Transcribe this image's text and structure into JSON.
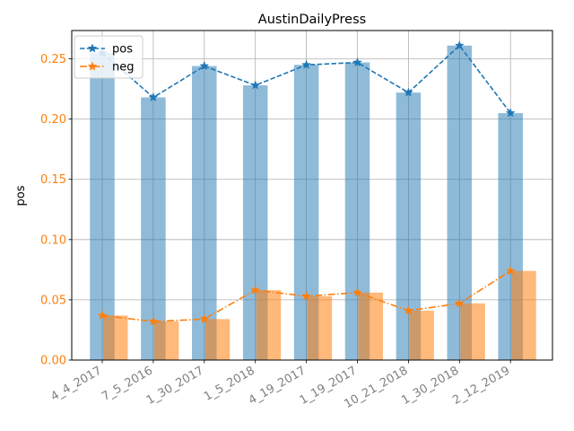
{
  "chart_data": {
    "type": "bar",
    "title": "AustinDailyPress",
    "xlabel": "",
    "ylabel": "pos",
    "ylim": [
      0,
      0.2735
    ],
    "yticks": [
      "0.00",
      "0.05",
      "0.10",
      "0.15",
      "0.20",
      "0.25"
    ],
    "categories": [
      "4_4_2017",
      "7_5_2016",
      "1_30_2017",
      "1_5_2018",
      "4_19_2017",
      "1_19_2017",
      "10_21_2018",
      "1_30_2018",
      "2_12_2019"
    ],
    "series": [
      {
        "name": "pos",
        "values": [
          0.255,
          0.218,
          0.244,
          0.228,
          0.245,
          0.247,
          0.222,
          0.261,
          0.205
        ],
        "color": "#1f77b4",
        "line_style": "dashed",
        "marker": "star"
      },
      {
        "name": "neg",
        "values": [
          0.037,
          0.032,
          0.034,
          0.058,
          0.053,
          0.056,
          0.041,
          0.047,
          0.074
        ],
        "color": "#ff7f0e",
        "line_style": "dashdot",
        "marker": "star"
      }
    ],
    "grid": true,
    "legend_position": "top-left",
    "tick_label_color": "#808080",
    "ytick_label_color": "#ff7f0e"
  }
}
